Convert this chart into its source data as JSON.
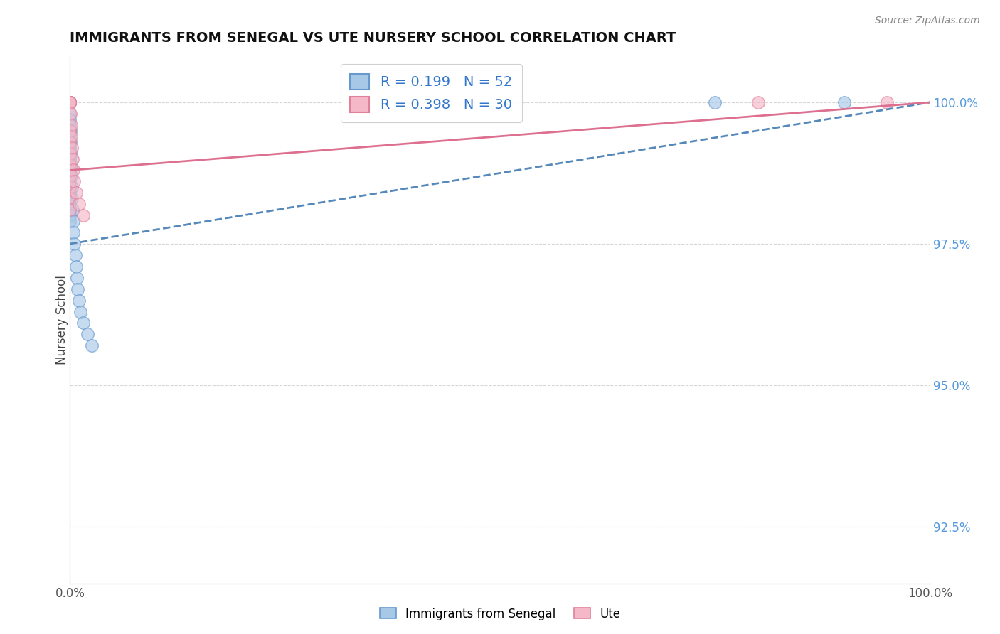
{
  "title": "IMMIGRANTS FROM SENEGAL VS UTE NURSERY SCHOOL CORRELATION CHART",
  "source": "Source: ZipAtlas.com",
  "ylabel": "Nursery School",
  "legend_labels": [
    "Immigrants from Senegal",
    "Ute"
  ],
  "R_blue": 0.199,
  "N_blue": 52,
  "R_pink": 0.398,
  "N_pink": 30,
  "blue_color": "#a8c8e8",
  "pink_color": "#f4b8c8",
  "blue_edge_color": "#6699cc",
  "pink_edge_color": "#e0809a",
  "blue_line_color": "#5588bb",
  "pink_line_color": "#dd7090",
  "blue_scatter_x": [
    0.0,
    0.0,
    0.0,
    0.0,
    0.0,
    0.0,
    0.0,
    0.0,
    0.0,
    0.0,
    0.0,
    0.0,
    0.0,
    0.0,
    0.0,
    0.0,
    0.0,
    0.0,
    0.0,
    0.0,
    0.0,
    0.0,
    0.0,
    0.0,
    0.0,
    0.0,
    0.0,
    0.0,
    0.0,
    0.0,
    0.05,
    0.08,
    0.1,
    0.12,
    0.15,
    0.2,
    0.25,
    0.3,
    0.35,
    0.4,
    0.5,
    0.6,
    0.7,
    0.8,
    0.9,
    1.0,
    1.2,
    1.5,
    2.0,
    2.5,
    75.0,
    90.0
  ],
  "blue_scatter_y": [
    100.0,
    100.0,
    100.0,
    100.0,
    100.0,
    100.0,
    100.0,
    100.0,
    100.0,
    100.0,
    99.8,
    99.7,
    99.6,
    99.5,
    99.4,
    99.3,
    99.2,
    99.1,
    99.0,
    98.9,
    98.8,
    98.7,
    98.6,
    98.5,
    98.4,
    98.3,
    98.2,
    98.1,
    98.0,
    97.9,
    99.5,
    99.3,
    99.1,
    98.9,
    98.7,
    98.5,
    98.3,
    98.1,
    97.9,
    97.7,
    97.5,
    97.3,
    97.1,
    96.9,
    96.7,
    96.5,
    96.3,
    96.1,
    95.9,
    95.7,
    100.0,
    100.0
  ],
  "pink_scatter_x": [
    0.0,
    0.0,
    0.0,
    0.0,
    0.0,
    0.0,
    0.0,
    0.0,
    0.0,
    0.0,
    0.0,
    0.0,
    0.0,
    0.0,
    0.0,
    0.0,
    0.0,
    0.0,
    0.05,
    0.1,
    0.15,
    0.2,
    0.3,
    0.4,
    0.5,
    0.7,
    1.0,
    1.5,
    80.0,
    95.0
  ],
  "pink_scatter_y": [
    100.0,
    100.0,
    100.0,
    100.0,
    100.0,
    100.0,
    100.0,
    100.0,
    100.0,
    100.0,
    99.5,
    99.3,
    99.1,
    98.9,
    98.7,
    98.5,
    98.3,
    98.1,
    99.8,
    99.6,
    99.4,
    99.2,
    99.0,
    98.8,
    98.6,
    98.4,
    98.2,
    98.0,
    100.0,
    100.0
  ],
  "xmin": 0.0,
  "xmax": 100.0,
  "ymin": 91.5,
  "ymax": 100.8,
  "ytick_values": [
    92.5,
    95.0,
    97.5,
    100.0
  ],
  "background_color": "#ffffff",
  "grid_color": "#cccccc"
}
